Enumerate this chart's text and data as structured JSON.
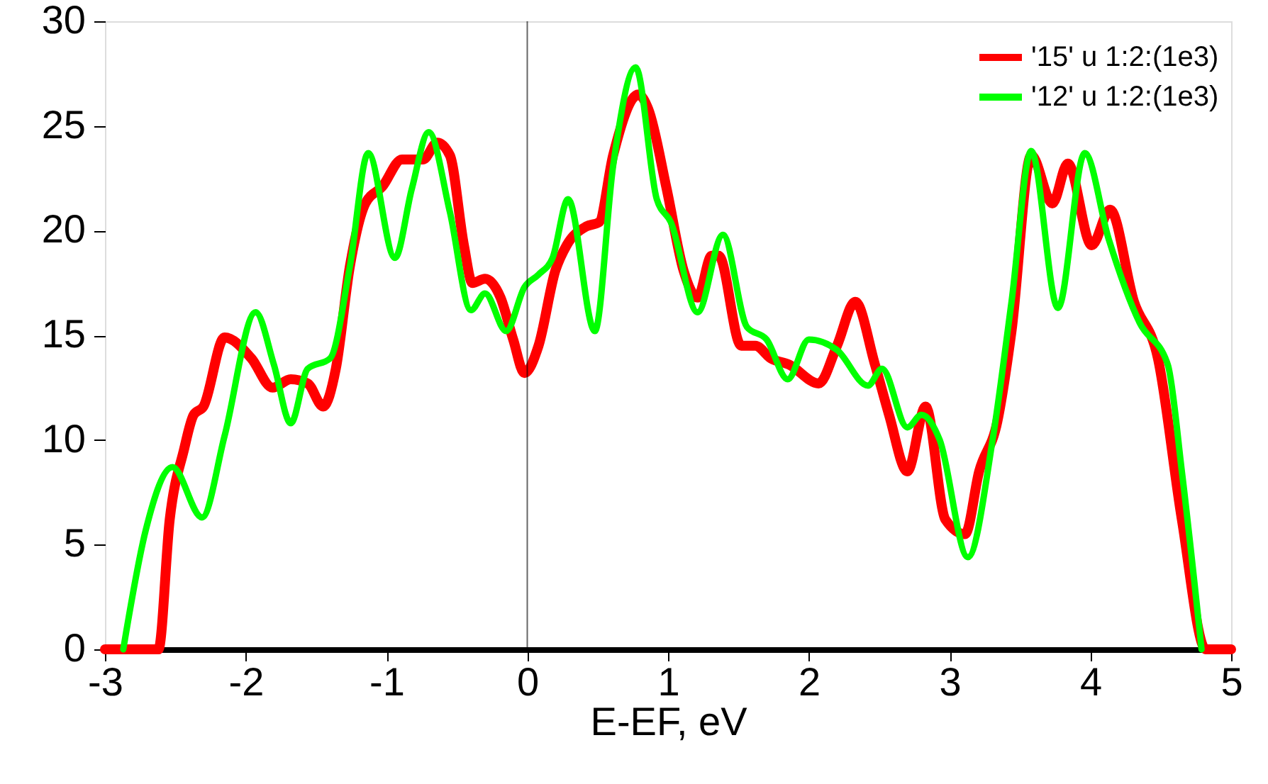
{
  "chart_data": {
    "type": "line",
    "xlabel": "E-EF, eV",
    "xlim": [
      -3,
      5
    ],
    "xticks": [
      -3,
      -2,
      -1,
      0,
      1,
      2,
      3,
      4,
      5
    ],
    "ylim": [
      0,
      30
    ],
    "yticks": [
      0,
      5,
      10,
      15,
      20,
      25,
      30
    ],
    "grid": false,
    "legend": "top right",
    "line_style": "solid",
    "marker": "none",
    "ref_lines": [
      {
        "axis": "x",
        "value": 0,
        "color": "#000000"
      }
    ],
    "series": [
      {
        "name": "'15' u 1:2:(1e3)",
        "color": "#ff0000",
        "x": [
          -3,
          -2.62,
          -2.54,
          -2.44,
          -2.37,
          -2.3,
          -2.15,
          -1.96,
          -1.81,
          -1.68,
          -1.56,
          -1.45,
          -1.36,
          -1.26,
          -1.15,
          -1.03,
          -0.89,
          -0.74,
          -0.64,
          -0.55,
          -0.45,
          -0.39,
          -0.3,
          -0.19,
          -0.1,
          -0.02,
          0.08,
          0.2,
          0.28,
          0.42,
          0.51,
          0.61,
          0.79,
          0.86,
          0.99,
          1.11,
          1.21,
          1.31,
          1.36,
          1.52,
          1.62,
          1.73,
          1.86,
          2.07,
          2.2,
          2.33,
          2.47,
          2.57,
          2.7,
          2.83,
          2.97,
          3.11,
          3.21,
          3.34,
          3.44,
          3.58,
          3.73,
          3.84,
          4.01,
          4.14,
          4.31,
          4.48,
          4.65,
          4.82,
          5
        ],
        "values": [
          0,
          0,
          6.2,
          9.5,
          11.2,
          11.6,
          14.9,
          13.9,
          12.5,
          12.9,
          12.7,
          11.6,
          13.4,
          18.3,
          21.3,
          22.1,
          23.4,
          23.4,
          24.2,
          23.6,
          19.3,
          17.5,
          17.7,
          16.8,
          14.8,
          13.2,
          14.5,
          18.1,
          19.3,
          20.2,
          20.4,
          23.6,
          26.5,
          25.8,
          22,
          18.1,
          16.8,
          18.8,
          18.8,
          14.5,
          14.5,
          13.9,
          13.6,
          12.7,
          14.5,
          16.6,
          13.6,
          11.2,
          8.5,
          11.6,
          6.2,
          5.5,
          8.5,
          10.9,
          15.2,
          23.6,
          21.3,
          23.2,
          19.3,
          21,
          16.6,
          13.9,
          6.2,
          0,
          0
        ]
      },
      {
        "name": "'12' u 1:2:(1e3)",
        "color": "#00ff00",
        "x": [
          -2.87,
          -2.71,
          -2.52,
          -2.31,
          -2.15,
          -1.93,
          -1.8,
          -1.68,
          -1.56,
          -1.4,
          -1.26,
          -1.13,
          -0.94,
          -0.82,
          -0.7,
          -0.55,
          -0.4,
          -0.3,
          -0.15,
          -0.02,
          0.08,
          0.18,
          0.29,
          0.48,
          0.61,
          0.77,
          0.92,
          1.02,
          1.21,
          1.39,
          1.56,
          1.7,
          1.85,
          2.0,
          2.2,
          2.42,
          2.52,
          2.7,
          2.8,
          2.93,
          3.13,
          3.31,
          3.44,
          3.58,
          3.77,
          3.96,
          4.13,
          4.35,
          4.55,
          4.65,
          4.79
        ],
        "values": [
          0,
          5.7,
          8.7,
          6.3,
          10.2,
          16.1,
          13.6,
          10.8,
          13.4,
          13.9,
          18.3,
          23.7,
          18.7,
          22,
          24.7,
          20.9,
          16.2,
          17,
          15.2,
          17.3,
          17.9,
          18.7,
          21.5,
          15.2,
          23.1,
          27.8,
          21.5,
          20.4,
          16.1,
          19.8,
          15.4,
          14.8,
          12.9,
          14.8,
          14.3,
          12.6,
          13.4,
          10.6,
          11.2,
          10,
          4.4,
          10.2,
          16.6,
          23.8,
          16.3,
          23.7,
          19.6,
          15.6,
          13.6,
          8.5,
          0
        ]
      }
    ]
  }
}
